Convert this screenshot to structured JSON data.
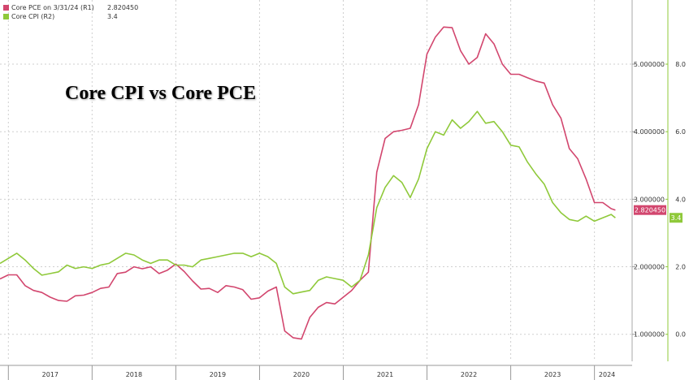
{
  "legend": [
    {
      "name": "Core PCE on 3/31/24 (R1)",
      "value": "2.820450",
      "color": "#d2466e"
    },
    {
      "name": "Core CPI (R2)",
      "value": "3.4",
      "color": "#8fc93a"
    }
  ],
  "title": "Core CPI vs Core PCE",
  "chart_data": {
    "type": "line",
    "title": "Core CPI vs Core PCE",
    "x_range": [
      2016.9,
      2024.45
    ],
    "x_ticks": [
      {
        "label": "2017",
        "value": 2017.5
      },
      {
        "label": "2018",
        "value": 2018.5
      },
      {
        "label": "2019",
        "value": 2019.5
      },
      {
        "label": "2020",
        "value": 2020.5
      },
      {
        "label": "2021",
        "value": 2021.5
      },
      {
        "label": "2022",
        "value": 2022.5
      },
      {
        "label": "2023",
        "value": 2023.5
      },
      {
        "label": "2024",
        "value": 2024.15
      }
    ],
    "x_gridlines": [
      2017,
      2018,
      2019,
      2020,
      2021,
      2022,
      2023,
      2024
    ],
    "axes": {
      "r1": {
        "range": [
          0.6,
          5.95
        ],
        "ticks": [
          {
            "value": 1,
            "label": "1.000000"
          },
          {
            "value": 2,
            "label": "2.000000"
          },
          {
            "value": 3,
            "label": "3.000000"
          },
          {
            "value": 4,
            "label": "4.000000"
          },
          {
            "value": 5,
            "label": "5.000000"
          }
        ]
      },
      "r2": {
        "range": [
          -0.8,
          9.9
        ],
        "ticks": [
          {
            "value": 0,
            "label": "0.0"
          },
          {
            "value": 2,
            "label": "2.0"
          },
          {
            "value": 4,
            "label": "4.0"
          },
          {
            "value": 6,
            "label": "6.0"
          },
          {
            "value": 8,
            "label": "8.0"
          }
        ]
      }
    },
    "series": [
      {
        "name": "Core PCE on 3/31/24 (R1)",
        "axis": "r1",
        "color": "#d2466e",
        "last_label": "2.820450",
        "points": [
          [
            2016.9,
            1.82
          ],
          [
            2017.0,
            1.88
          ],
          [
            2017.1,
            1.88
          ],
          [
            2017.2,
            1.72
          ],
          [
            2017.3,
            1.65
          ],
          [
            2017.4,
            1.62
          ],
          [
            2017.5,
            1.55
          ],
          [
            2017.6,
            1.5
          ],
          [
            2017.7,
            1.49
          ],
          [
            2017.8,
            1.57
          ],
          [
            2017.9,
            1.58
          ],
          [
            2018.0,
            1.62
          ],
          [
            2018.1,
            1.68
          ],
          [
            2018.2,
            1.7
          ],
          [
            2018.3,
            1.9
          ],
          [
            2018.4,
            1.92
          ],
          [
            2018.5,
            2.0
          ],
          [
            2018.6,
            1.97
          ],
          [
            2018.7,
            2.0
          ],
          [
            2018.8,
            1.9
          ],
          [
            2018.9,
            1.95
          ],
          [
            2019.0,
            2.04
          ],
          [
            2019.1,
            1.93
          ],
          [
            2019.2,
            1.79
          ],
          [
            2019.3,
            1.67
          ],
          [
            2019.4,
            1.68
          ],
          [
            2019.5,
            1.62
          ],
          [
            2019.6,
            1.72
          ],
          [
            2019.7,
            1.7
          ],
          [
            2019.8,
            1.66
          ],
          [
            2019.9,
            1.52
          ],
          [
            2020.0,
            1.54
          ],
          [
            2020.1,
            1.64
          ],
          [
            2020.2,
            1.7
          ],
          [
            2020.3,
            1.05
          ],
          [
            2020.4,
            0.95
          ],
          [
            2020.5,
            0.93
          ],
          [
            2020.6,
            1.25
          ],
          [
            2020.7,
            1.4
          ],
          [
            2020.8,
            1.47
          ],
          [
            2020.9,
            1.45
          ],
          [
            2021.0,
            1.55
          ],
          [
            2021.1,
            1.65
          ],
          [
            2021.2,
            1.8
          ],
          [
            2021.3,
            1.92
          ],
          [
            2021.4,
            3.4
          ],
          [
            2021.5,
            3.9
          ],
          [
            2021.6,
            4.0
          ],
          [
            2021.7,
            4.02
          ],
          [
            2021.8,
            4.05
          ],
          [
            2021.9,
            4.4
          ],
          [
            2022.0,
            5.15
          ],
          [
            2022.1,
            5.4
          ],
          [
            2022.2,
            5.55
          ],
          [
            2022.3,
            5.54
          ],
          [
            2022.4,
            5.2
          ],
          [
            2022.5,
            5.0
          ],
          [
            2022.6,
            5.1
          ],
          [
            2022.7,
            5.45
          ],
          [
            2022.8,
            5.3
          ],
          [
            2022.9,
            5.0
          ],
          [
            2023.0,
            4.85
          ],
          [
            2023.1,
            4.85
          ],
          [
            2023.2,
            4.8
          ],
          [
            2023.3,
            4.75
          ],
          [
            2023.4,
            4.72
          ],
          [
            2023.5,
            4.4
          ],
          [
            2023.6,
            4.2
          ],
          [
            2023.7,
            3.75
          ],
          [
            2023.8,
            3.6
          ],
          [
            2023.9,
            3.3
          ],
          [
            2024.0,
            2.95
          ],
          [
            2024.1,
            2.95
          ],
          [
            2024.2,
            2.86
          ],
          [
            2024.25,
            2.84
          ]
        ]
      },
      {
        "name": "Core CPI (R2)",
        "axis": "r2",
        "color": "#8fc93a",
        "last_label": "3.4",
        "points": [
          [
            2016.9,
            2.1
          ],
          [
            2017.0,
            2.25
          ],
          [
            2017.1,
            2.4
          ],
          [
            2017.2,
            2.2
          ],
          [
            2017.3,
            1.95
          ],
          [
            2017.4,
            1.75
          ],
          [
            2017.5,
            1.8
          ],
          [
            2017.6,
            1.85
          ],
          [
            2017.7,
            2.05
          ],
          [
            2017.8,
            1.95
          ],
          [
            2017.9,
            2.0
          ],
          [
            2018.0,
            1.95
          ],
          [
            2018.1,
            2.05
          ],
          [
            2018.2,
            2.1
          ],
          [
            2018.3,
            2.25
          ],
          [
            2018.4,
            2.4
          ],
          [
            2018.5,
            2.35
          ],
          [
            2018.6,
            2.2
          ],
          [
            2018.7,
            2.1
          ],
          [
            2018.8,
            2.2
          ],
          [
            2018.9,
            2.2
          ],
          [
            2019.0,
            2.05
          ],
          [
            2019.1,
            2.05
          ],
          [
            2019.2,
            2.0
          ],
          [
            2019.3,
            2.2
          ],
          [
            2019.4,
            2.25
          ],
          [
            2019.5,
            2.3
          ],
          [
            2019.6,
            2.35
          ],
          [
            2019.7,
            2.4
          ],
          [
            2019.8,
            2.4
          ],
          [
            2019.9,
            2.3
          ],
          [
            2020.0,
            2.4
          ],
          [
            2020.1,
            2.3
          ],
          [
            2020.2,
            2.1
          ],
          [
            2020.3,
            1.4
          ],
          [
            2020.4,
            1.2
          ],
          [
            2020.5,
            1.25
          ],
          [
            2020.6,
            1.3
          ],
          [
            2020.7,
            1.6
          ],
          [
            2020.8,
            1.7
          ],
          [
            2020.9,
            1.65
          ],
          [
            2021.0,
            1.6
          ],
          [
            2021.1,
            1.4
          ],
          [
            2021.2,
            1.6
          ],
          [
            2021.3,
            2.35
          ],
          [
            2021.4,
            3.75
          ],
          [
            2021.5,
            4.35
          ],
          [
            2021.6,
            4.7
          ],
          [
            2021.7,
            4.5
          ],
          [
            2021.8,
            4.05
          ],
          [
            2021.9,
            4.6
          ],
          [
            2022.0,
            5.5
          ],
          [
            2022.1,
            6.0
          ],
          [
            2022.2,
            5.9
          ],
          [
            2022.3,
            6.35
          ],
          [
            2022.4,
            6.1
          ],
          [
            2022.5,
            6.3
          ],
          [
            2022.6,
            6.6
          ],
          [
            2022.7,
            6.25
          ],
          [
            2022.8,
            6.3
          ],
          [
            2022.9,
            6.0
          ],
          [
            2023.0,
            5.6
          ],
          [
            2023.1,
            5.55
          ],
          [
            2023.2,
            5.1
          ],
          [
            2023.3,
            4.75
          ],
          [
            2023.4,
            4.45
          ],
          [
            2023.5,
            3.9
          ],
          [
            2023.6,
            3.6
          ],
          [
            2023.7,
            3.4
          ],
          [
            2023.8,
            3.35
          ],
          [
            2023.9,
            3.5
          ],
          [
            2024.0,
            3.35
          ],
          [
            2024.1,
            3.45
          ],
          [
            2024.2,
            3.55
          ],
          [
            2024.25,
            3.45
          ]
        ]
      }
    ]
  }
}
